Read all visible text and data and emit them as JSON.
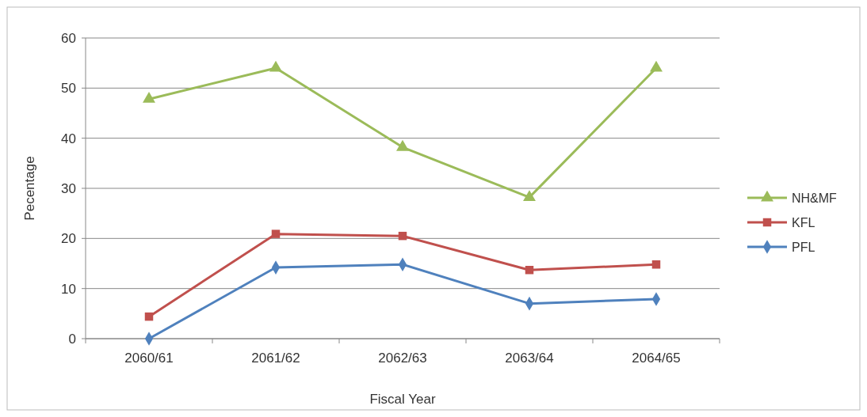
{
  "chart_data": {
    "type": "line",
    "xlabel": "Fiscal Year",
    "ylabel": "Pecentage",
    "categories": [
      "2060/61",
      "2061/62",
      "2062/63",
      "2063/64",
      "2064/65"
    ],
    "series": [
      {
        "name": "NH&MF",
        "color": "#9bbb59",
        "marker": "triangle",
        "values": [
          47.8,
          54,
          38.2,
          28.2,
          54
        ]
      },
      {
        "name": "KFL",
        "color": "#c0504d",
        "marker": "square",
        "values": [
          4.4,
          20.9,
          20.5,
          13.7,
          14.8
        ]
      },
      {
        "name": "PFL",
        "color": "#4f81bd",
        "marker": "diamond",
        "values": [
          0,
          14.2,
          14.8,
          7,
          7.9
        ]
      }
    ],
    "ylim": [
      0,
      60
    ],
    "yticks": [
      0,
      10,
      20,
      30,
      40,
      50,
      60
    ],
    "grid": "y",
    "legend": "right",
    "line_style": "solid"
  }
}
